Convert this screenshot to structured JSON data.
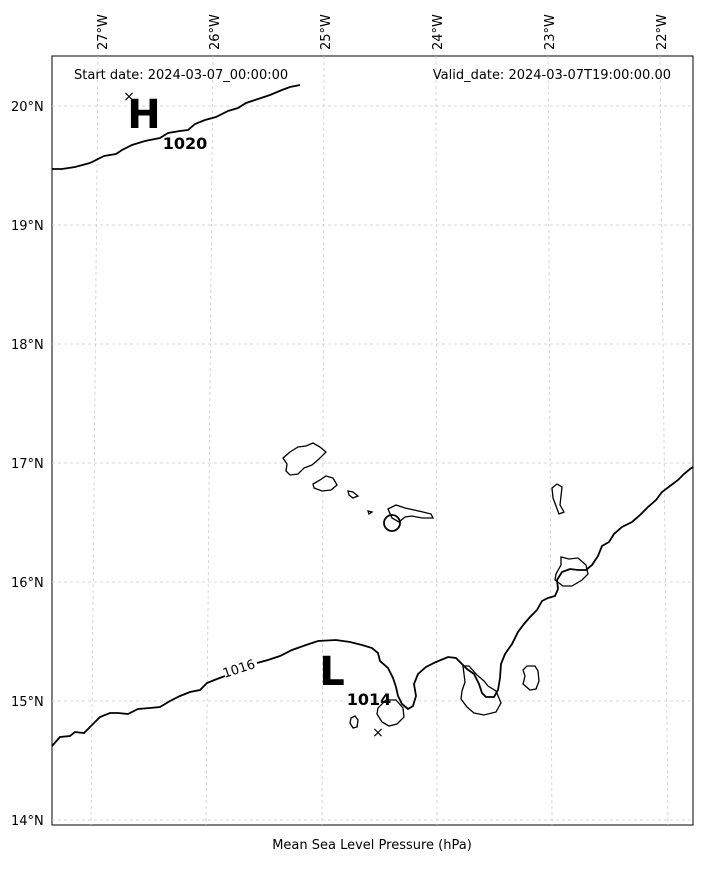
{
  "map": {
    "start_date": "Start date: 2024-03-07_00:00:00",
    "valid_date": "Valid_date: 2024-03-07T19:00:00.00",
    "xlabel": "Mean Sea Level Pressure (hPa)",
    "lon_labels": [
      "27°W",
      "26°W",
      "25°W",
      "24°W",
      "23°W",
      "22°W"
    ],
    "lat_labels": [
      "20°N",
      "19°N",
      "18°N",
      "17°N",
      "16°N",
      "15°N",
      "14°N"
    ],
    "isobar_labels": [
      "1016"
    ],
    "high": {
      "letter": "H",
      "value": "1020"
    },
    "low": {
      "letter": "L",
      "value": "1014"
    }
  }
}
